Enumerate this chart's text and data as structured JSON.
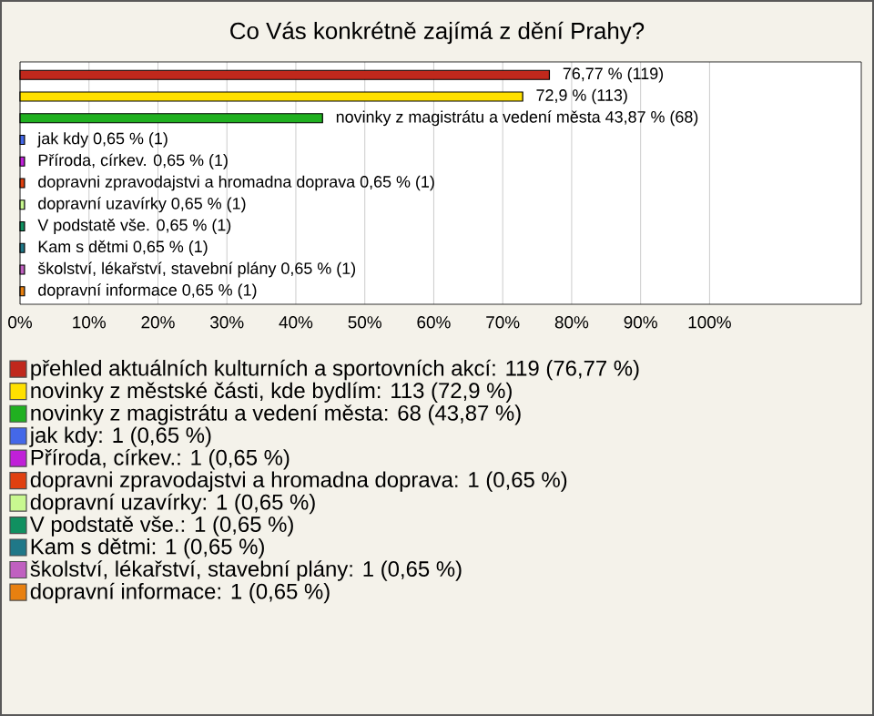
{
  "chart_data": {
    "type": "bar",
    "orientation": "horizontal",
    "title": "Co Vás konkrétně zajímá z dění Prahy?",
    "categories": [
      null,
      null,
      null,
      null,
      null,
      null,
      null,
      null,
      null,
      null,
      null
    ],
    "series": [
      {
        "name": "přehled aktuálních kulturních a sportovních akcí: 119 (76,77 %)",
        "color": "#c0281c",
        "values": [
          76.77,
          null,
          null,
          null,
          null,
          null,
          null,
          null,
          null,
          null,
          null
        ],
        "value_labels": [
          "76,77 % (119)",
          null,
          null,
          null,
          null,
          null,
          null,
          null,
          null,
          null,
          null
        ]
      },
      {
        "name": "novinky z městské části, kde bydlím: 113 (72,9 %)",
        "color": "#ffe000",
        "values": [
          null,
          72.9,
          null,
          null,
          null,
          null,
          null,
          null,
          null,
          null,
          null
        ],
        "value_labels": [
          null,
          "72,9 % (113)",
          null,
          null,
          null,
          null,
          null,
          null,
          null,
          null,
          null
        ]
      },
      {
        "name": "novinky z magistrátu a vedení města: 68 (43,87 %)",
        "color": "#20b020",
        "values": [
          null,
          null,
          43.87,
          null,
          null,
          null,
          null,
          null,
          null,
          null,
          null
        ],
        "value_labels": [
          null,
          null,
          "novinky z magistrátu a vedení města 43,87 % (68)",
          null,
          null,
          null,
          null,
          null,
          null,
          null,
          null
        ]
      },
      {
        "name": "jak kdy: 1 (0,65 %)",
        "color": "#4468e8",
        "values": [
          null,
          null,
          null,
          0.65,
          null,
          null,
          null,
          null,
          null,
          null,
          null
        ],
        "value_labels": [
          null,
          null,
          null,
          "jak kdy 0,65 % (1)",
          null,
          null,
          null,
          null,
          null,
          null,
          null
        ]
      },
      {
        "name": "Příroda, církev.: 1 (0,65 %)",
        "color": "#c020d8",
        "values": [
          null,
          null,
          null,
          null,
          0.65,
          null,
          null,
          null,
          null,
          null,
          null
        ],
        "value_labels": [
          null,
          null,
          null,
          null,
          "Příroda, církev. 0,65 % (1)",
          null,
          null,
          null,
          null,
          null,
          null
        ]
      },
      {
        "name": "dopravni zpravodajstvi a hromadna doprava: 1 (0,65 %)",
        "color": "#e04010",
        "values": [
          null,
          null,
          null,
          null,
          null,
          0.65,
          null,
          null,
          null,
          null,
          null
        ],
        "value_labels": [
          null,
          null,
          null,
          null,
          null,
          "dopravni zpravodajstvi a hromadna doprava 0,65 % (1)",
          null,
          null,
          null,
          null,
          null
        ]
      },
      {
        "name": "dopravní uzavírky: 1 (0,65 %)",
        "color": "#c8f890",
        "values": [
          null,
          null,
          null,
          null,
          null,
          null,
          0.65,
          null,
          null,
          null,
          null
        ],
        "value_labels": [
          null,
          null,
          null,
          null,
          null,
          null,
          "dopravní uzavírky 0,65 % (1)",
          null,
          null,
          null,
          null
        ]
      },
      {
        "name": "V podstatě vše.: 1 (0,65 %)",
        "color": "#109060",
        "values": [
          null,
          null,
          null,
          null,
          null,
          null,
          null,
          0.65,
          null,
          null,
          null
        ],
        "value_labels": [
          null,
          null,
          null,
          null,
          null,
          null,
          null,
          "V podstatě vše. 0,65 % (1)",
          null,
          null,
          null
        ]
      },
      {
        "name": "Kam s dětmi: 1 (0,65 %)",
        "color": "#207888",
        "values": [
          null,
          null,
          null,
          null,
          null,
          null,
          null,
          null,
          0.65,
          null,
          null
        ],
        "value_labels": [
          null,
          null,
          null,
          null,
          null,
          null,
          null,
          null,
          "Kam s dětmi 0,65 % (1)",
          null,
          null
        ]
      },
      {
        "name": "školství, lékařství, stavební plány: 1 (0,65 %)",
        "color": "#c060c0",
        "values": [
          null,
          null,
          null,
          null,
          null,
          null,
          null,
          null,
          null,
          0.65,
          null
        ],
        "value_labels": [
          null,
          null,
          null,
          null,
          null,
          null,
          null,
          null,
          null,
          "školství, lékařství, stavební plány 0,65 % (1)",
          null
        ]
      },
      {
        "name": "dopravní informace: 1 (0,65 %)",
        "color": "#e88010",
        "values": [
          null,
          null,
          null,
          null,
          null,
          null,
          null,
          null,
          null,
          null,
          0.65
        ],
        "value_labels": [
          null,
          null,
          null,
          null,
          null,
          null,
          null,
          null,
          null,
          null,
          "dopravní informace 0,65 % (1)"
        ]
      }
    ],
    "xlim": [
      0,
      122
    ],
    "xticks": [
      {
        "value": 0,
        "label": "0%"
      },
      {
        "value": 10,
        "label": "10%"
      },
      {
        "value": 20,
        "label": "20%"
      },
      {
        "value": 30,
        "label": "30%"
      },
      {
        "value": 40,
        "label": "40%"
      },
      {
        "value": 50,
        "label": "50%"
      },
      {
        "value": 60,
        "label": "60%"
      },
      {
        "value": 70,
        "label": "70%"
      },
      {
        "value": 80,
        "label": "80%"
      },
      {
        "value": 90,
        "label": "90%"
      },
      {
        "value": 100,
        "label": "100%"
      }
    ],
    "tick_labels": "x",
    "grid": "x",
    "legend": "bottom"
  }
}
